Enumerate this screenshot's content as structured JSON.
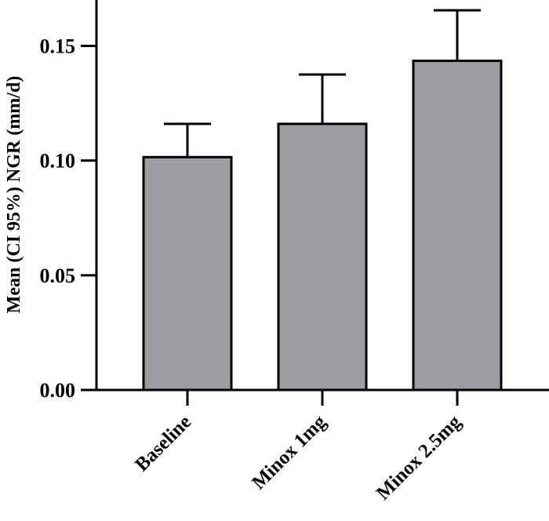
{
  "chart_data": {
    "type": "bar",
    "title": "",
    "xlabel": "",
    "ylabel": "Mean (CI 95%) NGR (mm/d)",
    "categories": [
      "Baseline",
      "Minox 1mg",
      "Minox 2.5mg"
    ],
    "series": [
      {
        "values": [
          0.1015,
          0.116,
          0.1435
        ],
        "error_upper": [
          0.116,
          0.1375,
          0.1655
        ]
      }
    ],
    "ylim": [
      0,
      0.17
    ],
    "yticks": [
      0.0,
      0.05,
      0.1,
      0.15
    ],
    "ytick_labels": [
      "0.00",
      "0.05",
      "0.10",
      "0.15"
    ],
    "grid": false,
    "legend": "none",
    "colors": {
      "bar_fill": "#9d9ca1",
      "bar_stroke": "#000000",
      "axis": "#000000"
    }
  }
}
